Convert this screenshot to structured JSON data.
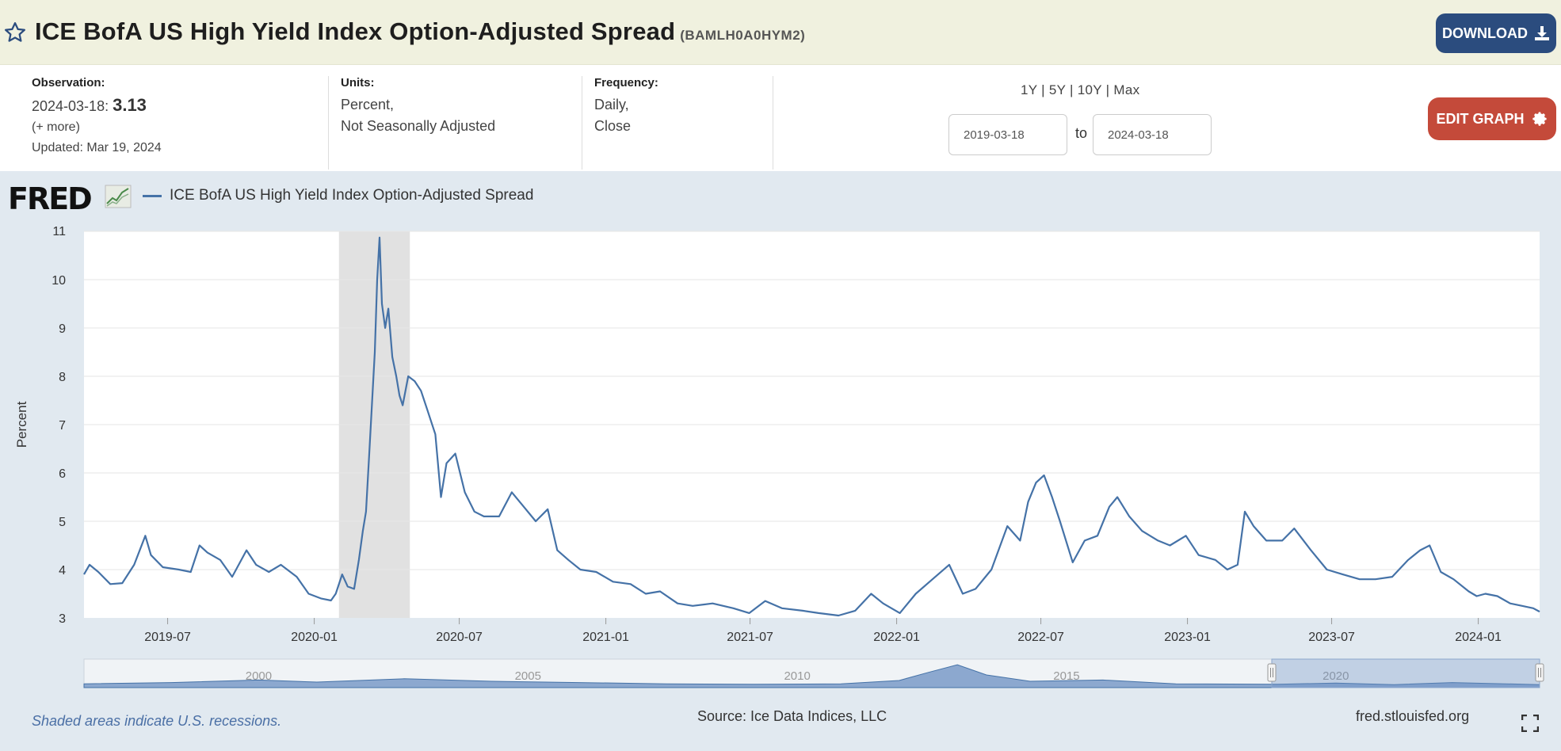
{
  "header": {
    "title": "ICE BofA US High Yield Index Option-Adjusted Spread",
    "series_id": "(BAMLH0A0HYM2)",
    "download_label": "DOWNLOAD",
    "star_icon": "star-outline-icon",
    "download_icon": "download-icon"
  },
  "meta": {
    "observation_label": "Observation:",
    "observation_date": "2024-03-18:",
    "observation_value": "3.13",
    "more_link": "(+ more)",
    "updated": "Updated: Mar 19, 2024",
    "units_label": "Units:",
    "units_line1": "Percent,",
    "units_line2": "Not Seasonally Adjusted",
    "frequency_label": "Frequency:",
    "frequency_line1": "Daily,",
    "frequency_line2": "Close",
    "range_1y": "1Y",
    "range_5y": "5Y",
    "range_10y": "10Y",
    "range_max": "Max",
    "range_sep": "|",
    "date_from": "2019-03-18",
    "date_to": "2024-03-18",
    "to_label": "to",
    "edit_label": "EDIT GRAPH",
    "edit_icon": "gear-icon"
  },
  "graph": {
    "logo_text": "FRED",
    "legend_label": "ICE BofA US High Yield Index Option-Adjusted Spread",
    "footer_note": "Shaded areas indicate U.S. recessions.",
    "source": "Source: Ice Data Indices, LLC",
    "site": "fred.stlouisfed.org",
    "fullscreen_icon": "fullscreen-icon",
    "navigator_labels": [
      "2000",
      "2005",
      "2010",
      "2015",
      "2020"
    ]
  },
  "colors": {
    "line": "#4572a7",
    "recession": "#e1e1e1",
    "download_bg": "#2b4c7e",
    "edit_bg": "#c44a3a",
    "title_bar_bg": "#f0f1df"
  },
  "chart_data": {
    "type": "line",
    "title": "",
    "xlabel": "",
    "ylabel": "Percent",
    "ylim": [
      3,
      11
    ],
    "yticks": [
      3,
      4,
      5,
      6,
      7,
      8,
      9,
      10,
      11
    ],
    "xlim": [
      "2019-03-18",
      "2024-03-18"
    ],
    "xticks": [
      "2019-07",
      "2020-01",
      "2020-07",
      "2021-01",
      "2021-07",
      "2022-01",
      "2022-07",
      "2023-01",
      "2023-07",
      "2024-01"
    ],
    "grid": true,
    "recessions": [
      {
        "start": "2020-02-01",
        "end": "2020-04-30"
      }
    ],
    "series": [
      {
        "name": "ICE BofA US High Yield Index Option-Adjusted Spread",
        "points": [
          [
            "2019-03-18",
            3.9
          ],
          [
            "2019-03-25",
            4.1
          ],
          [
            "2019-04-05",
            3.95
          ],
          [
            "2019-04-20",
            3.7
          ],
          [
            "2019-05-05",
            3.72
          ],
          [
            "2019-05-20",
            4.1
          ],
          [
            "2019-06-03",
            4.7
          ],
          [
            "2019-06-10",
            4.3
          ],
          [
            "2019-06-25",
            4.05
          ],
          [
            "2019-07-15",
            4.0
          ],
          [
            "2019-07-30",
            3.95
          ],
          [
            "2019-08-10",
            4.5
          ],
          [
            "2019-08-20",
            4.35
          ],
          [
            "2019-09-05",
            4.2
          ],
          [
            "2019-09-20",
            3.85
          ],
          [
            "2019-10-08",
            4.4
          ],
          [
            "2019-10-20",
            4.1
          ],
          [
            "2019-11-05",
            3.95
          ],
          [
            "2019-11-20",
            4.1
          ],
          [
            "2019-12-10",
            3.85
          ],
          [
            "2019-12-25",
            3.5
          ],
          [
            "2020-01-10",
            3.4
          ],
          [
            "2020-01-22",
            3.36
          ],
          [
            "2020-01-28",
            3.5
          ],
          [
            "2020-02-05",
            3.9
          ],
          [
            "2020-02-12",
            3.65
          ],
          [
            "2020-02-20",
            3.6
          ],
          [
            "2020-02-26",
            4.2
          ],
          [
            "2020-03-02",
            4.8
          ],
          [
            "2020-03-06",
            5.2
          ],
          [
            "2020-03-10",
            6.4
          ],
          [
            "2020-03-13",
            7.3
          ],
          [
            "2020-03-17",
            8.5
          ],
          [
            "2020-03-20",
            10.0
          ],
          [
            "2020-03-23",
            10.87
          ],
          [
            "2020-03-26",
            9.5
          ],
          [
            "2020-03-30",
            9.0
          ],
          [
            "2020-04-03",
            9.4
          ],
          [
            "2020-04-08",
            8.4
          ],
          [
            "2020-04-13",
            8.0
          ],
          [
            "2020-04-17",
            7.6
          ],
          [
            "2020-04-21",
            7.4
          ],
          [
            "2020-04-28",
            8.0
          ],
          [
            "2020-05-06",
            7.9
          ],
          [
            "2020-05-14",
            7.7
          ],
          [
            "2020-05-22",
            7.3
          ],
          [
            "2020-06-01",
            6.8
          ],
          [
            "2020-06-08",
            5.5
          ],
          [
            "2020-06-15",
            6.2
          ],
          [
            "2020-06-26",
            6.4
          ],
          [
            "2020-07-08",
            5.6
          ],
          [
            "2020-07-20",
            5.2
          ],
          [
            "2020-08-01",
            5.1
          ],
          [
            "2020-08-20",
            5.1
          ],
          [
            "2020-09-05",
            5.6
          ],
          [
            "2020-09-20",
            5.3
          ],
          [
            "2020-10-05",
            5.0
          ],
          [
            "2020-10-20",
            5.25
          ],
          [
            "2020-11-01",
            4.4
          ],
          [
            "2020-11-15",
            4.2
          ],
          [
            "2020-11-30",
            4.0
          ],
          [
            "2020-12-20",
            3.95
          ],
          [
            "2021-01-10",
            3.75
          ],
          [
            "2021-02-01",
            3.7
          ],
          [
            "2021-02-20",
            3.5
          ],
          [
            "2021-03-10",
            3.55
          ],
          [
            "2021-04-01",
            3.3
          ],
          [
            "2021-04-20",
            3.25
          ],
          [
            "2021-05-15",
            3.3
          ],
          [
            "2021-06-10",
            3.2
          ],
          [
            "2021-06-30",
            3.1
          ],
          [
            "2021-07-20",
            3.35
          ],
          [
            "2021-08-10",
            3.2
          ],
          [
            "2021-09-05",
            3.15
          ],
          [
            "2021-09-25",
            3.1
          ],
          [
            "2021-10-20",
            3.05
          ],
          [
            "2021-11-10",
            3.15
          ],
          [
            "2021-11-30",
            3.5
          ],
          [
            "2021-12-15",
            3.3
          ],
          [
            "2022-01-05",
            3.1
          ],
          [
            "2022-01-25",
            3.5
          ],
          [
            "2022-02-15",
            3.8
          ],
          [
            "2022-03-08",
            4.1
          ],
          [
            "2022-03-25",
            3.5
          ],
          [
            "2022-04-10",
            3.6
          ],
          [
            "2022-04-30",
            4.0
          ],
          [
            "2022-05-20",
            4.9
          ],
          [
            "2022-06-05",
            4.6
          ],
          [
            "2022-06-15",
            5.4
          ],
          [
            "2022-06-25",
            5.8
          ],
          [
            "2022-07-05",
            5.95
          ],
          [
            "2022-07-15",
            5.5
          ],
          [
            "2022-07-25",
            5.0
          ],
          [
            "2022-08-10",
            4.15
          ],
          [
            "2022-08-25",
            4.6
          ],
          [
            "2022-09-10",
            4.7
          ],
          [
            "2022-09-25",
            5.3
          ],
          [
            "2022-10-05",
            5.5
          ],
          [
            "2022-10-20",
            5.1
          ],
          [
            "2022-11-05",
            4.8
          ],
          [
            "2022-11-25",
            4.6
          ],
          [
            "2022-12-10",
            4.5
          ],
          [
            "2022-12-30",
            4.7
          ],
          [
            "2023-01-15",
            4.3
          ],
          [
            "2023-02-05",
            4.2
          ],
          [
            "2023-02-20",
            4.0
          ],
          [
            "2023-03-05",
            4.1
          ],
          [
            "2023-03-14",
            5.2
          ],
          [
            "2023-03-25",
            4.9
          ],
          [
            "2023-04-10",
            4.6
          ],
          [
            "2023-04-30",
            4.6
          ],
          [
            "2023-05-15",
            4.85
          ],
          [
            "2023-06-05",
            4.4
          ],
          [
            "2023-06-25",
            4.0
          ],
          [
            "2023-07-15",
            3.9
          ],
          [
            "2023-08-05",
            3.8
          ],
          [
            "2023-08-25",
            3.8
          ],
          [
            "2023-09-15",
            3.85
          ],
          [
            "2023-10-05",
            4.2
          ],
          [
            "2023-10-20",
            4.4
          ],
          [
            "2023-11-01",
            4.5
          ],
          [
            "2023-11-15",
            3.95
          ],
          [
            "2023-12-01",
            3.8
          ],
          [
            "2023-12-20",
            3.55
          ],
          [
            "2023-12-30",
            3.45
          ],
          [
            "2024-01-10",
            3.5
          ],
          [
            "2024-01-25",
            3.45
          ],
          [
            "2024-02-10",
            3.3
          ],
          [
            "2024-02-25",
            3.25
          ],
          [
            "2024-03-10",
            3.2
          ],
          [
            "2024-03-18",
            3.13
          ]
        ]
      }
    ]
  }
}
